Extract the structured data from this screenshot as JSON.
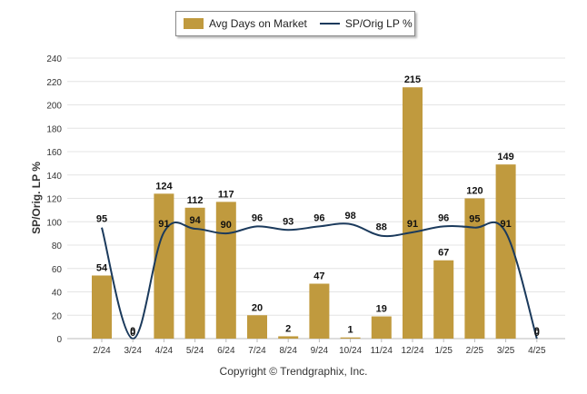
{
  "legend": {
    "bar_label": "Avg Days on Market",
    "line_label": "SP/Orig LP %"
  },
  "copyright": "Copyright © Trendgraphix, Inc.",
  "chart_data": {
    "type": "bar",
    "categories": [
      "2/24",
      "3/24",
      "4/24",
      "5/24",
      "6/24",
      "7/24",
      "8/24",
      "9/24",
      "10/24",
      "11/24",
      "12/24",
      "1/25",
      "2/25",
      "3/25",
      "4/25"
    ],
    "series": [
      {
        "name": "Avg Days on Market",
        "type": "bar",
        "color": "#c09a3e",
        "values": [
          54,
          0,
          124,
          112,
          117,
          20,
          2,
          47,
          1,
          19,
          215,
          67,
          120,
          149,
          0
        ]
      },
      {
        "name": "SP/Orig LP %",
        "type": "line",
        "color": "#1b3a5c",
        "values": [
          95,
          0,
          91,
          94,
          90,
          96,
          93,
          96,
          98,
          88,
          91,
          96,
          95,
          91,
          0
        ]
      }
    ],
    "xlabel": "",
    "ylabel": "SP/Orig. LP %",
    "ylim": [
      0,
      240
    ],
    "yticks": [
      0,
      20,
      40,
      60,
      80,
      100,
      120,
      140,
      160,
      180,
      200,
      220,
      240
    ],
    "grid": true,
    "legend_position": "top-center"
  }
}
